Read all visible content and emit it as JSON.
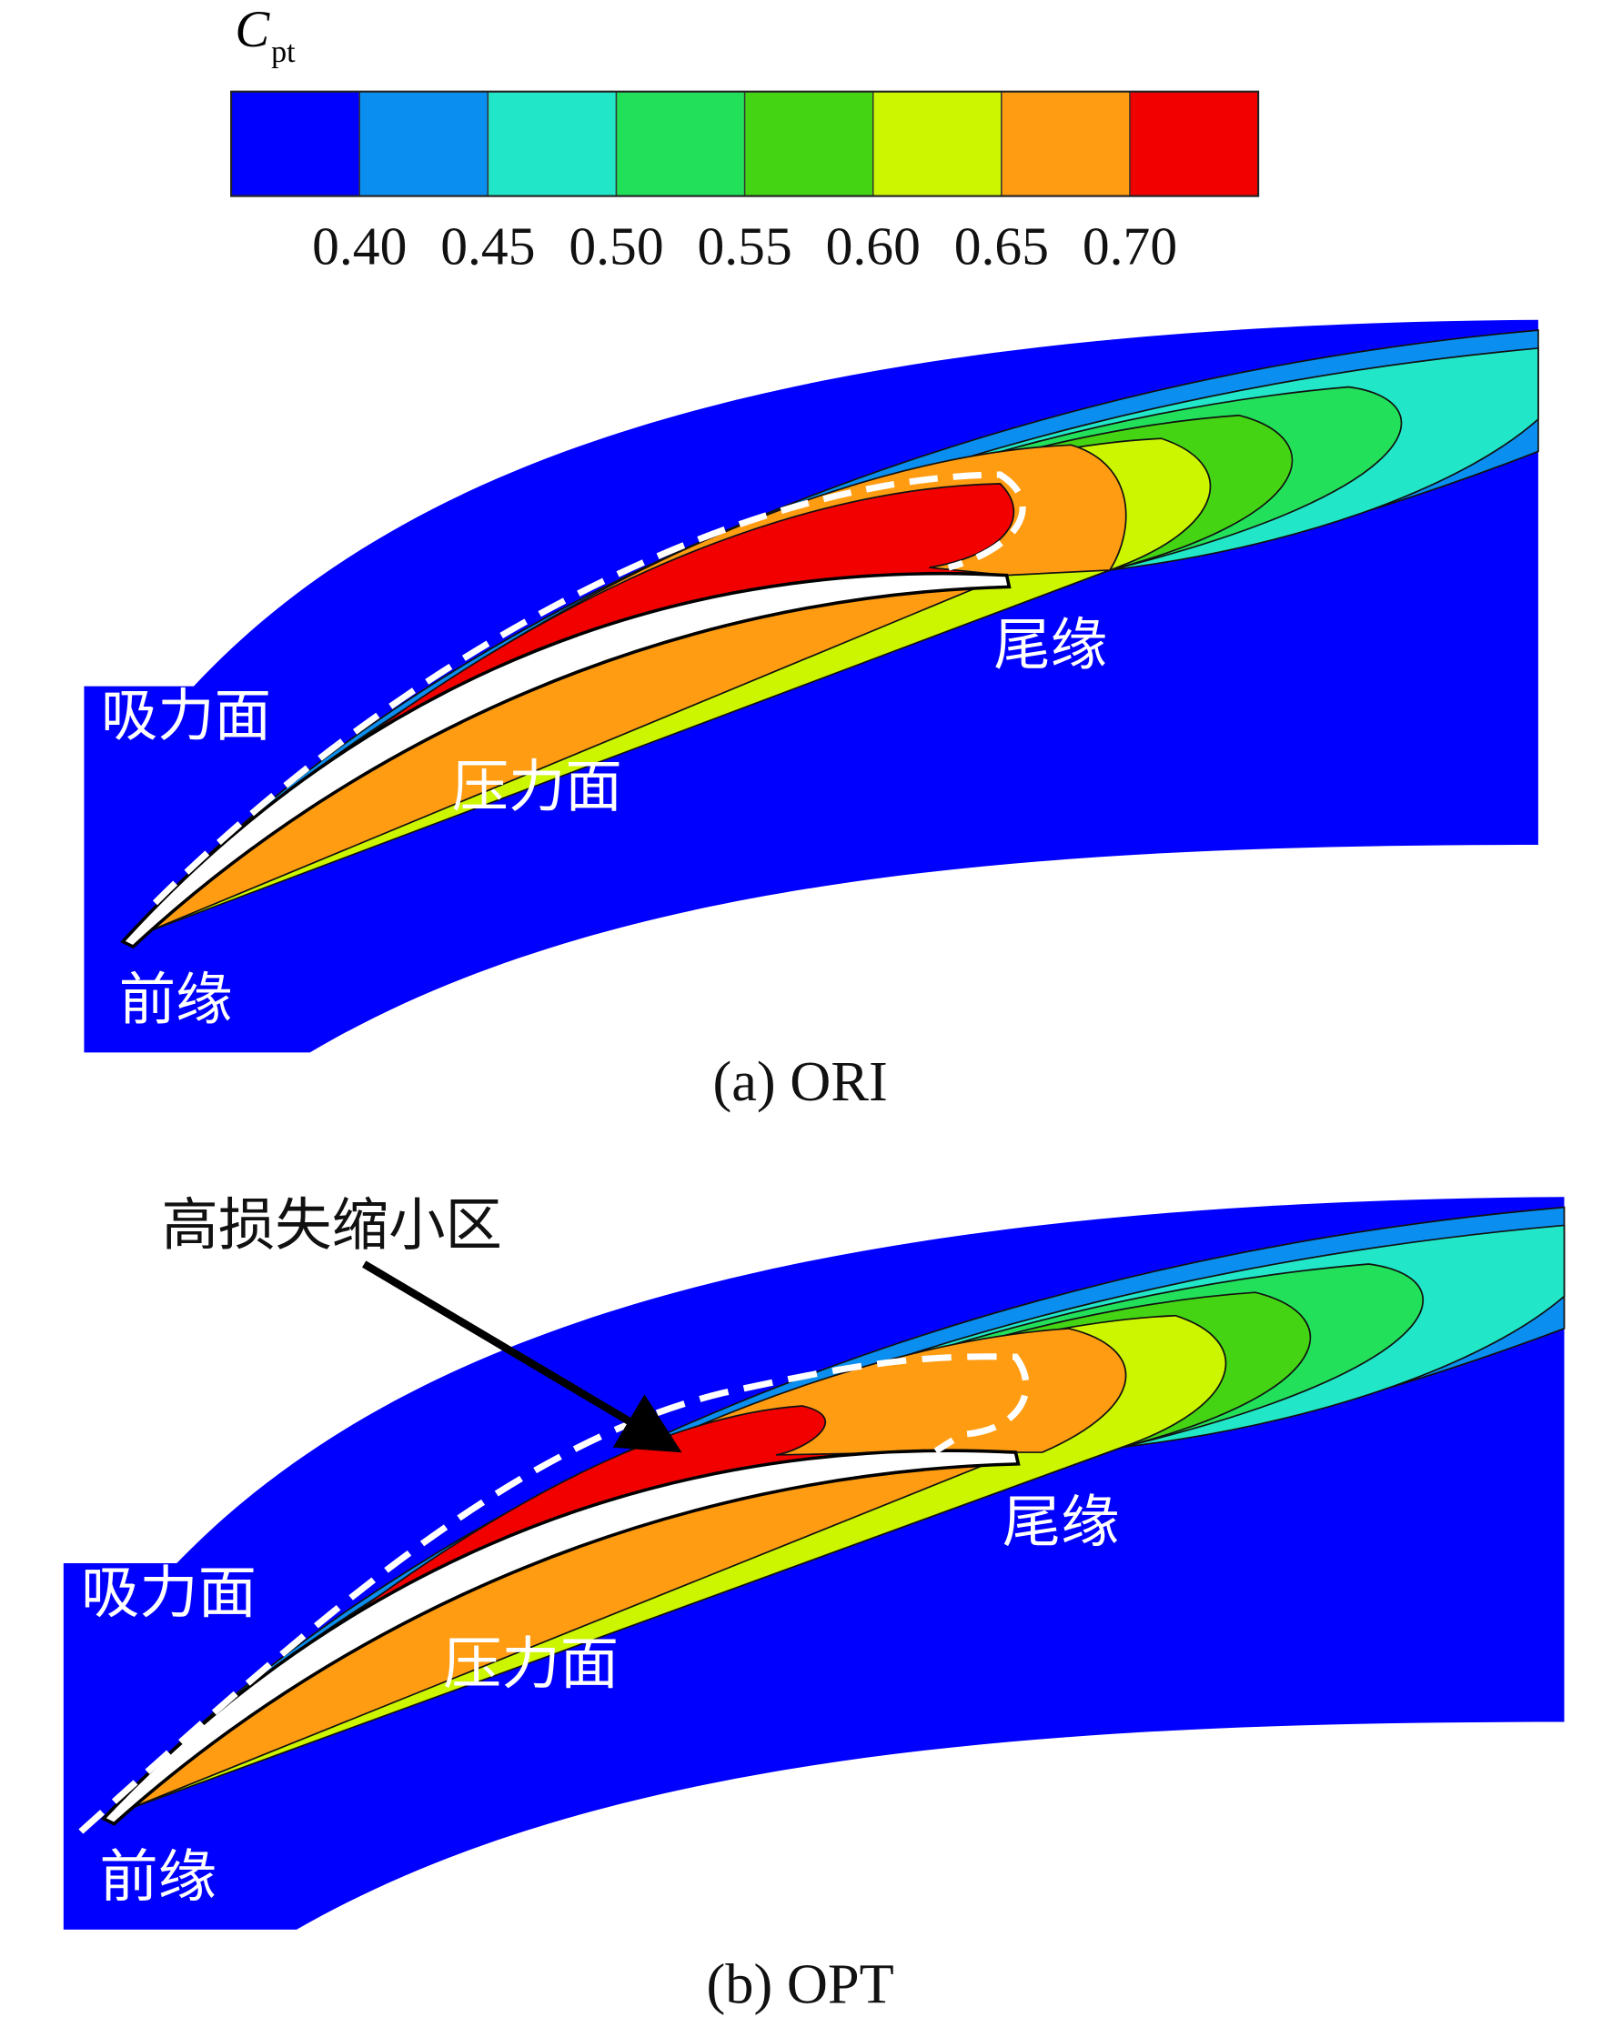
{
  "colorbar": {
    "symbol": "C",
    "subscript": "pt",
    "ticks": [
      "0.40",
      "0.45",
      "0.50",
      "0.55",
      "0.60",
      "0.65",
      "0.70"
    ]
  },
  "panels": [
    {
      "caption": "(a) ORI",
      "suction_side": "吸力面",
      "pressure_side": "压力面",
      "leading_edge": "前缘",
      "trailing_edge": "尾缘"
    },
    {
      "caption": "(b) OPT",
      "suction_side": "吸力面",
      "pressure_side": "压力面",
      "leading_edge": "前缘",
      "trailing_edge": "尾缘",
      "annotation": "高损失缩小区"
    }
  ]
}
